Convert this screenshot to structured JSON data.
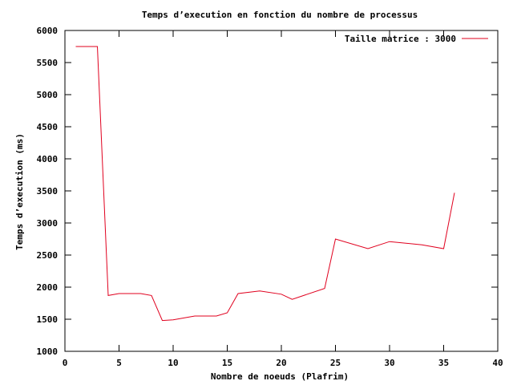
{
  "chart_data": {
    "type": "line",
    "title": "Temps d’execution en fonction du nombre de processus",
    "xlabel": "Nombre de noeuds (Plafrim)",
    "ylabel": "Temps d’execution (ms)",
    "xlim": [
      0,
      40
    ],
    "ylim": [
      1000,
      6000
    ],
    "xticks": [
      0,
      5,
      10,
      15,
      20,
      25,
      30,
      35,
      40
    ],
    "yticks": [
      1000,
      1500,
      2000,
      2500,
      3000,
      3500,
      4000,
      4500,
      5000,
      5500,
      6000
    ],
    "grid": false,
    "legend_position": "top-right",
    "series": [
      {
        "name": "Taille matrice : 3000",
        "color": "#e0001e",
        "x": [
          1,
          3,
          4,
          5,
          7,
          8,
          9,
          10,
          12,
          14,
          15,
          16,
          18,
          20,
          21,
          24,
          25,
          28,
          30,
          33,
          35,
          36
        ],
        "y": [
          5750,
          5750,
          1870,
          1900,
          1900,
          1870,
          1480,
          1490,
          1550,
          1550,
          1600,
          1900,
          1940,
          1890,
          1810,
          1980,
          2750,
          2600,
          2710,
          2660,
          2600,
          3470
        ]
      }
    ]
  }
}
